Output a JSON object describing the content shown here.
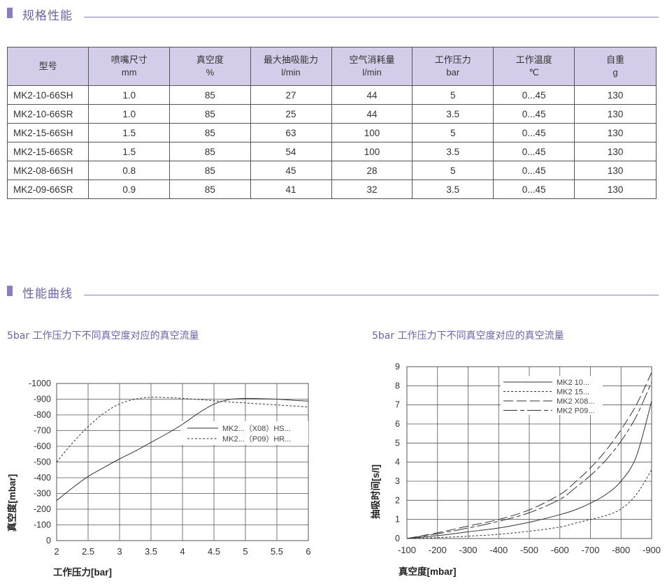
{
  "sections": {
    "spec_title": "规格性能",
    "curve_title": "性能曲线"
  },
  "table": {
    "headers": [
      {
        "name": "型号",
        "unit": ""
      },
      {
        "name": "喷嘴尺寸",
        "unit": "mm"
      },
      {
        "name": "真空度",
        "unit": "%"
      },
      {
        "name": "最大抽吸能力",
        "unit": "l/min"
      },
      {
        "name": "空气消耗量",
        "unit": "l/min"
      },
      {
        "name": "工作压力",
        "unit": "bar"
      },
      {
        "name": "工作温度",
        "unit": "℃"
      },
      {
        "name": "自重",
        "unit": "g"
      }
    ],
    "rows": [
      [
        "MK2-10-66SH",
        "1.0",
        "85",
        "27",
        "44",
        "5",
        "0...45",
        "130"
      ],
      [
        "MK2-10-66SR",
        "1.0",
        "85",
        "25",
        "44",
        "3.5",
        "0...45",
        "130"
      ],
      [
        "MK2-15-66SH",
        "1.5",
        "85",
        "63",
        "100",
        "5",
        "0...45",
        "130"
      ],
      [
        "MK2-15-66SR",
        "1.5",
        "85",
        "54",
        "100",
        "3.5",
        "0...45",
        "130"
      ],
      [
        "MK2-08-66SH",
        "0.8",
        "85",
        "45",
        "28",
        "5",
        "0...45",
        "130"
      ],
      [
        "MK2-09-66SR",
        "0.9",
        "85",
        "41",
        "32",
        "3.5",
        "0...45",
        "130"
      ]
    ]
  },
  "chart_data": [
    {
      "type": "line",
      "title": "5bar 工作压力下不同真空度对应的真空流量",
      "xlabel": "工作压力[bar]",
      "ylabel": "真空度[mbar]",
      "xlim": [
        2,
        6
      ],
      "ylim": [
        0,
        -1000
      ],
      "xticks": [
        "2",
        "2.5",
        "3",
        "3.5",
        "4",
        "4.5",
        "5",
        "5.5",
        "6"
      ],
      "yticks": [
        "0",
        "-100",
        "-200",
        "-300",
        "-400",
        "-500",
        "-600",
        "-700",
        "-800",
        "-900",
        "-1000"
      ],
      "grid": true,
      "legend_position": "center-right",
      "series": [
        {
          "name": "MK2...（X08）HS...",
          "style": "solid",
          "x": [
            2,
            2.25,
            2.5,
            2.75,
            3,
            3.25,
            3.5,
            3.75,
            4,
            4.25,
            4.5,
            4.75,
            5,
            5.25,
            5.5,
            5.75,
            6
          ],
          "y": [
            -255,
            -335,
            -408,
            -465,
            -520,
            -570,
            -625,
            -680,
            -740,
            -810,
            -868,
            -898,
            -905,
            -903,
            -900,
            -893,
            -888
          ]
        },
        {
          "name": "MK2...（P09）HR...",
          "style": "dashed",
          "x": [
            2,
            2.25,
            2.5,
            2.75,
            3,
            3.25,
            3.5,
            3.75,
            4,
            4.25,
            4.5,
            4.75,
            5,
            5.25,
            5.5,
            5.75,
            6
          ],
          "y": [
            -500,
            -620,
            -725,
            -810,
            -870,
            -900,
            -912,
            -910,
            -905,
            -898,
            -890,
            -882,
            -876,
            -870,
            -863,
            -857,
            -850
          ]
        }
      ]
    },
    {
      "type": "line",
      "title": "5bar 工作压力下不同真空度对应的真空流量",
      "xlabel": "真空度[mbar]",
      "ylabel": "抽吸时间[s/l]",
      "xlim": [
        -100,
        -900
      ],
      "ylim": [
        0,
        9
      ],
      "xticks": [
        "-100",
        "-200",
        "-300",
        "-400",
        "-500",
        "-600",
        "-700",
        "-800",
        "-900"
      ],
      "yticks": [
        "0",
        "1",
        "2",
        "3",
        "4",
        "5",
        "6",
        "7",
        "8",
        "9"
      ],
      "grid": true,
      "legend_position": "top-center",
      "series": [
        {
          "name": "MK2  10...",
          "style": "solid",
          "x": [
            -100,
            -200,
            -300,
            -400,
            -500,
            -600,
            -650,
            -700,
            -750,
            -800,
            -850,
            -900
          ],
          "y": [
            0,
            0.15,
            0.35,
            0.55,
            0.85,
            1.25,
            1.5,
            1.85,
            2.3,
            3.0,
            4.3,
            7.2
          ]
        },
        {
          "name": "MK2  15...",
          "style": "dashed",
          "x": [
            -100,
            -200,
            -300,
            -400,
            -500,
            -600,
            -650,
            -700,
            -750,
            -800,
            -850,
            -900
          ],
          "y": [
            0,
            0.05,
            0.12,
            0.22,
            0.38,
            0.6,
            0.8,
            1.0,
            1.2,
            1.55,
            2.3,
            3.6
          ]
        },
        {
          "name": "MK2  X08...",
          "style": "longdash",
          "x": [
            -100,
            -200,
            -300,
            -400,
            -500,
            -600,
            -650,
            -700,
            -750,
            -800,
            -850,
            -900
          ],
          "y": [
            0,
            0.3,
            0.65,
            1.0,
            1.5,
            2.3,
            2.95,
            3.7,
            4.6,
            5.7,
            7.0,
            8.7
          ]
        },
        {
          "name": "MK2  P09...",
          "style": "dashdot",
          "x": [
            -100,
            -200,
            -300,
            -400,
            -500,
            -600,
            -650,
            -700,
            -750,
            -800,
            -850,
            -900
          ],
          "y": [
            0,
            0.25,
            0.55,
            0.9,
            1.35,
            2.05,
            2.65,
            3.3,
            4.1,
            5.1,
            6.4,
            8.2
          ]
        }
      ]
    }
  ]
}
